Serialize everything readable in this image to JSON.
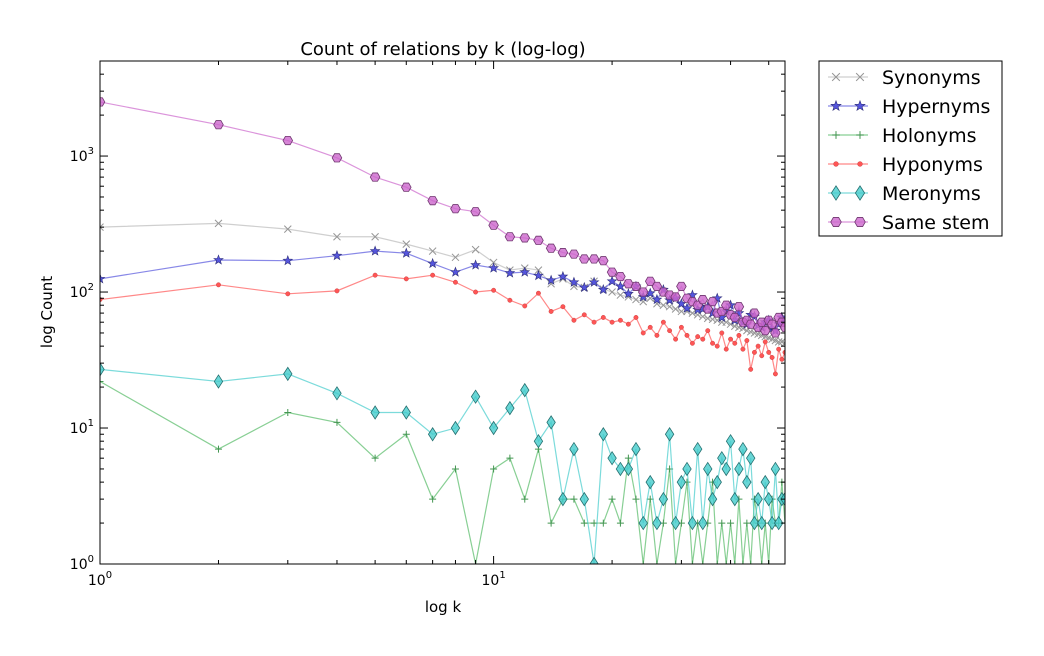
{
  "chart_data": {
    "type": "line",
    "title": "Count of relations by k (log-log)",
    "xlabel": "log k",
    "ylabel": "log Count",
    "xscale": "log",
    "yscale": "log",
    "xlim": [
      1,
      55
    ],
    "ylim": [
      1,
      5000
    ],
    "grid": false,
    "legend_placement": "outside-top-right",
    "x_ticks": [
      {
        "value": 1,
        "base": "10",
        "exp": "0"
      },
      {
        "value": 10,
        "base": "10",
        "exp": "1"
      }
    ],
    "y_ticks": [
      {
        "value": 1,
        "base": "10",
        "exp": "0"
      },
      {
        "value": 10,
        "base": "10",
        "exp": "1"
      },
      {
        "value": 100,
        "base": "10",
        "exp": "2"
      },
      {
        "value": 1000,
        "base": "10",
        "exp": "3"
      }
    ],
    "series": [
      {
        "name": "Synonyms",
        "color": "#bbbbbb",
        "marker": "x",
        "x": [
          1,
          2,
          3,
          4,
          5,
          6,
          7,
          8,
          9,
          10,
          11,
          12,
          13,
          14,
          15,
          16,
          17,
          18,
          19,
          20,
          21,
          22,
          23,
          24,
          25,
          26,
          27,
          28,
          29,
          30,
          31,
          32,
          33,
          34,
          35,
          36,
          37,
          38,
          39,
          40,
          41,
          42,
          43,
          44,
          45,
          46,
          47,
          48,
          49,
          50,
          51,
          52,
          53,
          54,
          55
        ],
        "values": [
          300,
          320,
          290,
          255,
          255,
          225,
          200,
          180,
          205,
          165,
          145,
          150,
          145,
          115,
          125,
          110,
          108,
          120,
          105,
          100,
          95,
          92,
          88,
          85,
          90,
          82,
          80,
          78,
          75,
          72,
          72,
          70,
          68,
          66,
          64,
          63,
          62,
          60,
          60,
          58,
          56,
          55,
          54,
          52,
          51,
          50,
          49,
          48,
          47,
          46,
          45,
          44,
          43,
          43,
          42
        ]
      },
      {
        "name": "Hypernyms",
        "color": "#5555dd",
        "marker": "star",
        "x": [
          1,
          2,
          3,
          4,
          5,
          6,
          7,
          8,
          9,
          10,
          11,
          12,
          13,
          14,
          15,
          16,
          17,
          18,
          19,
          20,
          21,
          22,
          23,
          24,
          25,
          26,
          27,
          28,
          29,
          30,
          31,
          32,
          33,
          34,
          35,
          36,
          37,
          38,
          39,
          40,
          41,
          42,
          43,
          44,
          45,
          46,
          47,
          48,
          49,
          50,
          51,
          52,
          53,
          54,
          55
        ],
        "values": [
          125,
          172,
          170,
          185,
          200,
          193,
          162,
          140,
          158,
          150,
          138,
          140,
          132,
          122,
          130,
          118,
          108,
          118,
          104,
          120,
          110,
          97,
          110,
          92,
          98,
          88,
          104,
          87,
          90,
          82,
          76,
          95,
          74,
          75,
          78,
          70,
          90,
          65,
          72,
          80,
          62,
          70,
          60,
          58,
          68,
          66,
          57,
          55,
          60,
          62,
          54,
          52,
          58,
          65,
          60
        ]
      },
      {
        "name": "Holonyms",
        "color": "#55bb66",
        "marker": "plus",
        "x": [
          1,
          2,
          3,
          4,
          5,
          6,
          7,
          8,
          9,
          10,
          11,
          12,
          13,
          14,
          15,
          16,
          17,
          18,
          19,
          20,
          21,
          22,
          23,
          24,
          25,
          26,
          27,
          28,
          29,
          30,
          31,
          32,
          33,
          34,
          35,
          36,
          37,
          38,
          39,
          40,
          41,
          42,
          43,
          44,
          45,
          46,
          47,
          48,
          49,
          50,
          51,
          52,
          53,
          54,
          55
        ],
        "values": [
          22,
          7,
          13,
          11,
          6,
          9,
          3,
          5,
          1,
          5,
          6,
          3,
          7,
          2,
          3,
          3,
          2,
          2,
          2,
          3,
          2,
          6,
          3,
          1,
          3,
          1,
          2,
          5,
          1,
          2,
          4,
          1,
          2,
          1,
          2,
          4,
          1,
          2,
          1,
          2,
          1,
          3,
          1,
          2,
          1,
          3,
          2,
          1,
          2,
          1,
          3,
          2,
          2,
          4,
          2
        ]
      },
      {
        "name": "Hyponyms",
        "color": "#ff5555",
        "marker": "dot",
        "x": [
          1,
          2,
          3,
          4,
          5,
          6,
          7,
          8,
          9,
          10,
          11,
          12,
          13,
          14,
          15,
          16,
          17,
          18,
          19,
          20,
          21,
          22,
          23,
          24,
          25,
          26,
          27,
          28,
          29,
          30,
          31,
          32,
          33,
          34,
          35,
          36,
          37,
          38,
          39,
          40,
          41,
          42,
          43,
          44,
          45,
          46,
          47,
          48,
          49,
          50,
          51,
          52,
          53,
          54,
          55
        ],
        "values": [
          88,
          113,
          97,
          102,
          133,
          125,
          133,
          118,
          100,
          103,
          87,
          79,
          98,
          72,
          78,
          62,
          68,
          60,
          65,
          60,
          62,
          58,
          65,
          50,
          55,
          48,
          60,
          52,
          45,
          55,
          48,
          42,
          47,
          45,
          52,
          42,
          40,
          50,
          38,
          45,
          42,
          48,
          38,
          44,
          27,
          36,
          40,
          34,
          43,
          36,
          33,
          25,
          38,
          32,
          36
        ]
      },
      {
        "name": "Meronyms",
        "color": "#44cccc",
        "marker": "diamond",
        "x": [
          1,
          2,
          3,
          4,
          5,
          6,
          7,
          8,
          9,
          10,
          11,
          12,
          13,
          14,
          15,
          16,
          17,
          18,
          19,
          20,
          21,
          22,
          23,
          24,
          25,
          26,
          27,
          28,
          29,
          30,
          31,
          32,
          33,
          34,
          35,
          36,
          37,
          38,
          39,
          40,
          41,
          42,
          43,
          44,
          45,
          46,
          47,
          48,
          49,
          50,
          51,
          52,
          53,
          54,
          55
        ],
        "values": [
          27,
          22,
          25,
          18,
          13,
          13,
          9,
          10,
          17,
          10,
          14,
          19,
          8,
          11,
          3,
          7,
          3,
          1,
          9,
          6,
          5,
          5,
          7,
          2,
          4,
          2,
          3,
          9,
          2,
          4,
          5,
          2,
          7,
          2,
          5,
          3,
          4,
          6,
          5,
          8,
          3,
          5,
          7,
          4,
          6,
          2,
          3,
          2,
          4,
          3,
          2,
          5,
          2,
          3,
          3
        ]
      },
      {
        "name": "Same stem",
        "color": "#cc66cc",
        "marker": "hexagon",
        "x": [
          1,
          2,
          3,
          4,
          5,
          6,
          7,
          8,
          9,
          10,
          11,
          12,
          13,
          14,
          15,
          16,
          17,
          18,
          19,
          20,
          21,
          22,
          23,
          24,
          25,
          26,
          27,
          28,
          29,
          30,
          31,
          32,
          33,
          34,
          35,
          36,
          37,
          38,
          39,
          40,
          41,
          42,
          43,
          44,
          45,
          46,
          47,
          48,
          49,
          50,
          51,
          52,
          53,
          54,
          55
        ],
        "values": [
          2500,
          1700,
          1300,
          970,
          700,
          590,
          470,
          410,
          390,
          310,
          255,
          250,
          240,
          210,
          195,
          190,
          175,
          175,
          170,
          140,
          130,
          115,
          110,
          100,
          120,
          110,
          100,
          95,
          92,
          110,
          90,
          85,
          80,
          88,
          75,
          85,
          70,
          72,
          80,
          68,
          65,
          78,
          60,
          62,
          58,
          70,
          55,
          60,
          52,
          62,
          58,
          50,
          65,
          60,
          55
        ]
      }
    ]
  }
}
